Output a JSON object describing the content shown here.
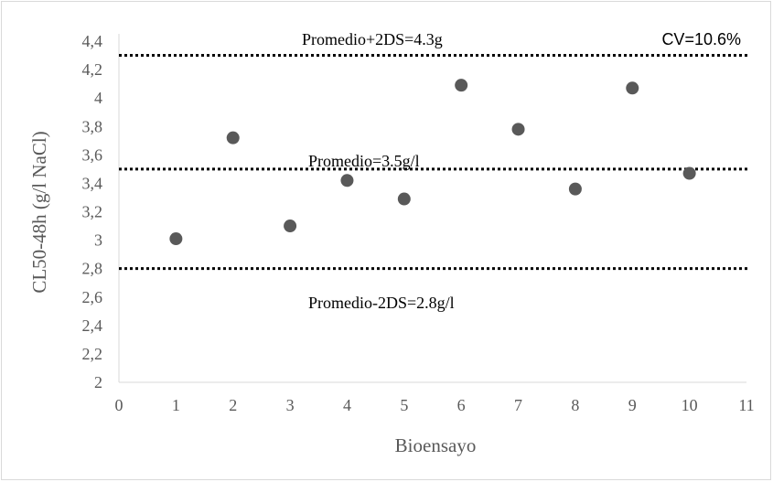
{
  "chart_data": {
    "type": "scatter",
    "xlabel": "Bioensayo",
    "ylabel": "CL50-48h (g/l NaCl)",
    "xlim": [
      0,
      11
    ],
    "ylim": [
      2,
      4.4
    ],
    "x_ticks": [
      "0",
      "1",
      "2",
      "3",
      "4",
      "5",
      "6",
      "7",
      "8",
      "9",
      "10",
      "11"
    ],
    "y_ticks": [
      "2",
      "2,2",
      "2,4",
      "2,6",
      "2,8",
      "3",
      "3,2",
      "3,4",
      "3,6",
      "3,8",
      "4",
      "4,2",
      "4,4"
    ],
    "x_tick_values": [
      0,
      1,
      2,
      3,
      4,
      5,
      6,
      7,
      8,
      9,
      10,
      11
    ],
    "y_tick_values": [
      2,
      2.2,
      2.4,
      2.6,
      2.8,
      3,
      3.2,
      3.4,
      3.6,
      3.8,
      4,
      4.2,
      4.4
    ],
    "grid": false,
    "marker_color": "#595959",
    "line_color": "#000000",
    "points": [
      {
        "x": 1,
        "y": 3.01
      },
      {
        "x": 2,
        "y": 3.72
      },
      {
        "x": 3,
        "y": 3.1
      },
      {
        "x": 4,
        "y": 3.42
      },
      {
        "x": 5,
        "y": 3.29
      },
      {
        "x": 6,
        "y": 4.09
      },
      {
        "x": 7,
        "y": 3.78
      },
      {
        "x": 8,
        "y": 3.36
      },
      {
        "x": 9,
        "y": 4.07
      },
      {
        "x": 10,
        "y": 3.47
      }
    ],
    "reference_lines": [
      {
        "y": 4.3,
        "label": "Promedio+2DS=4.3g"
      },
      {
        "y": 3.5,
        "label": "Promedio=3.5g/l"
      },
      {
        "y": 2.8,
        "label": "Promedio-2DS=2.8g/l"
      }
    ],
    "annotations": {
      "cv": "CV=10.6%"
    }
  }
}
